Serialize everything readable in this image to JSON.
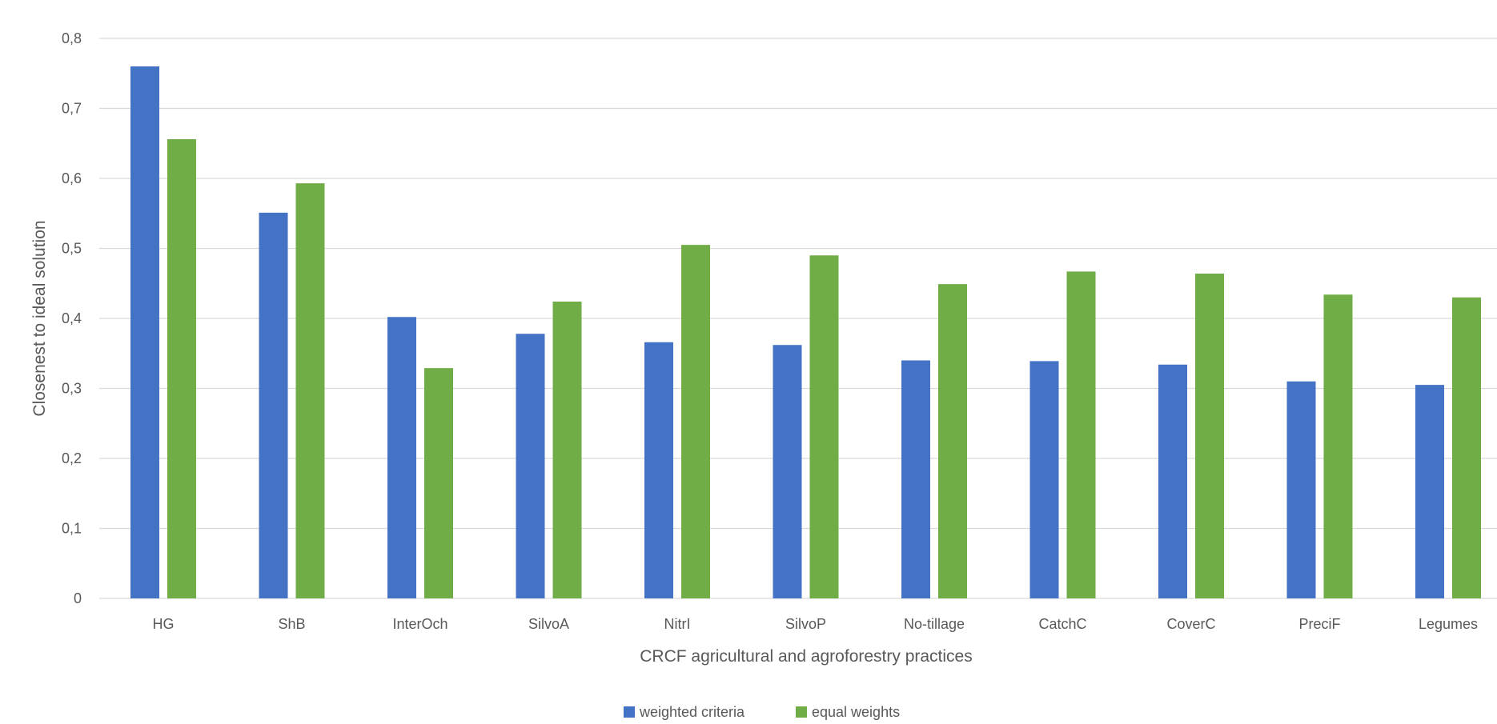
{
  "chart_data": {
    "type": "bar",
    "title": "",
    "xlabel": "CRCF agricultural and agroforestry practices",
    "ylabel": "Closenest to ideal solution",
    "ylim": [
      0,
      0.8
    ],
    "yticks": [
      "0",
      "0,1",
      "0,2",
      "0,3",
      "0,4",
      "0,5",
      "0,6",
      "0,7",
      "0,8"
    ],
    "grid": true,
    "legend_position": "bottom",
    "categories": [
      "HG",
      "ShB",
      "InterOch",
      "SilvoA",
      "NitrI",
      "SilvoP",
      "No-tillage",
      "CatchC",
      "CoverC",
      "PreciF",
      "Legumes"
    ],
    "series": [
      {
        "name": "weighted criteria",
        "color": "#4472C4",
        "values": [
          0.76,
          0.551,
          0.402,
          0.378,
          0.366,
          0.362,
          0.34,
          0.339,
          0.334,
          0.31,
          0.305
        ]
      },
      {
        "name": "equal weights",
        "color": "#70AD47",
        "values": [
          0.656,
          0.593,
          0.329,
          0.424,
          0.505,
          0.49,
          0.449,
          0.467,
          0.464,
          0.434,
          0.43
        ]
      }
    ]
  }
}
